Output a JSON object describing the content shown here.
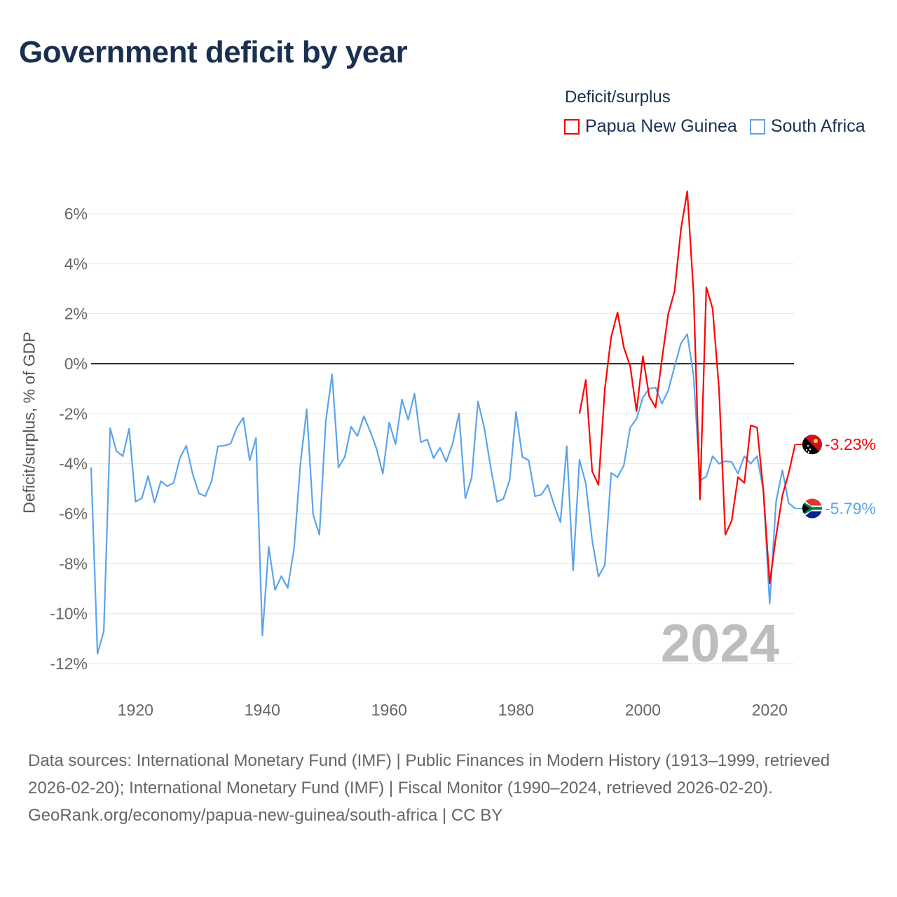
{
  "title": "Government deficit by year",
  "legend": {
    "title": "Deficit/surplus",
    "items": [
      {
        "label": "Papua New Guinea",
        "color": "#ff0000"
      },
      {
        "label": "South Africa",
        "color": "#5ba4ec"
      }
    ]
  },
  "year_label": "2024",
  "footer": {
    "sources": "Data sources: International Monetary Fund (IMF) | Public Finances in Modern History (1913–1999, retrieved 2026-02-20); International Monetary Fund (IMF) | Fiscal Monitor (1990–2024, retrieved 2026-02-20).",
    "credit": "GeoRank.org/economy/papua-new-guinea/south-africa | CC BY"
  },
  "chart_data": {
    "type": "line",
    "title": "Government deficit by year",
    "xlabel": "",
    "ylabel": "Deficit/surplus, % of GDP",
    "xlim": [
      1913,
      2024
    ],
    "ylim": [
      -12,
      6
    ],
    "xticks": [
      {
        "v": 1920,
        "label": "1920"
      },
      {
        "v": 1940,
        "label": "1940"
      },
      {
        "v": 1960,
        "label": "1960"
      },
      {
        "v": 1980,
        "label": "1980"
      },
      {
        "v": 2000,
        "label": "2000"
      },
      {
        "v": 2020,
        "label": "2020"
      }
    ],
    "yticks": [
      {
        "v": 6,
        "label": "6%"
      },
      {
        "v": 4,
        "label": "4%"
      },
      {
        "v": 2,
        "label": "2%"
      },
      {
        "v": 0,
        "label": "0%"
      },
      {
        "v": -2,
        "label": "-2%"
      },
      {
        "v": -4,
        "label": "-4%"
      },
      {
        "v": -6,
        "label": "-6%"
      },
      {
        "v": -8,
        "label": "-8%"
      },
      {
        "v": -10,
        "label": "-10%"
      },
      {
        "v": -12,
        "label": "-12%"
      }
    ],
    "grid": true,
    "legend_position": "top-right",
    "series": [
      {
        "name": "Papua New Guinea",
        "color": "#ff0000",
        "end_label": "-3.23%",
        "start_year": 1990,
        "values": [
          -2.0,
          -0.65,
          -4.3,
          -4.85,
          -1.0,
          1.07,
          2.05,
          0.65,
          -0.1,
          -1.9,
          0.3,
          -1.3,
          -1.75,
          0.15,
          2.0,
          2.9,
          5.38,
          6.9,
          2.78,
          -5.44,
          3.06,
          2.2,
          -1.0,
          -6.84,
          -6.28,
          -4.54,
          -4.77,
          -2.47,
          -2.55,
          -5.07,
          -8.78,
          -6.9,
          -5.27,
          -4.37,
          -3.23
        ]
      },
      {
        "name": "South Africa",
        "color": "#5ba4ec",
        "end_label": "-5.79%",
        "start_year": 1913,
        "values": [
          -4.15,
          -11.6,
          -10.7,
          -2.58,
          -3.5,
          -3.7,
          -2.6,
          -5.52,
          -5.38,
          -4.49,
          -5.55,
          -4.7,
          -4.9,
          -4.77,
          -3.78,
          -3.28,
          -4.4,
          -5.19,
          -5.3,
          -4.7,
          -3.3,
          -3.28,
          -3.2,
          -2.55,
          -2.16,
          -3.87,
          -2.97,
          -10.88,
          -7.32,
          -9.05,
          -8.5,
          -8.97,
          -7.4,
          -4.0,
          -1.82,
          -6.03,
          -6.84,
          -2.3,
          -0.42,
          -4.15,
          -3.73,
          -2.52,
          -2.89,
          -2.1,
          -2.7,
          -3.4,
          -4.4,
          -2.35,
          -3.22,
          -1.43,
          -2.24,
          -1.2,
          -3.14,
          -3.03,
          -3.78,
          -3.36,
          -3.92,
          -3.2,
          -1.99,
          -5.38,
          -4.57,
          -1.51,
          -2.58,
          -4.15,
          -5.52,
          -5.41,
          -4.65,
          -1.93,
          -3.73,
          -3.87,
          -5.3,
          -5.24,
          -4.85,
          -5.66,
          -6.34,
          -3.3,
          -8.27,
          -3.84,
          -4.79,
          -7.06,
          -8.52,
          -8.05,
          -4.37,
          -4.54,
          -4.07,
          -2.55,
          -2.21,
          -1.35,
          -1.0,
          -0.95,
          -1.6,
          -1.07,
          -0.11,
          0.81,
          1.18,
          -0.5,
          -4.68,
          -4.51,
          -3.7,
          -4.0,
          -3.9,
          -3.93,
          -4.4,
          -3.7,
          -4.0,
          -3.7,
          -5.07,
          -9.6,
          -5.52,
          -4.26,
          -5.58,
          -5.79
        ]
      }
    ]
  }
}
